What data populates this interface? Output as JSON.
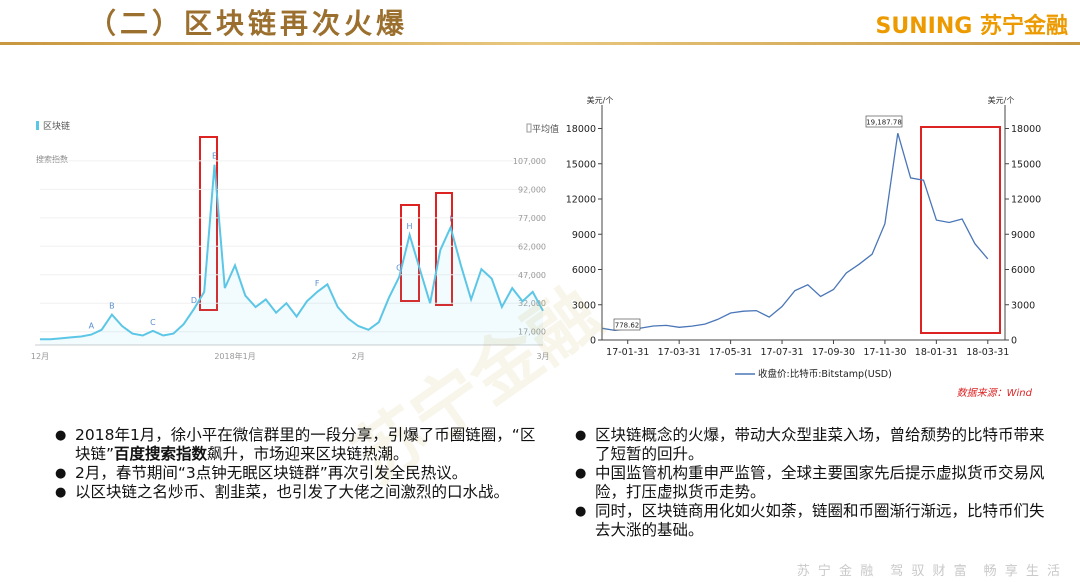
{
  "header": {
    "title": "（二）区块链再次火爆",
    "logo_latin": "SUNING",
    "logo_cn": "苏宁金融"
  },
  "chart_data": [
    {
      "type": "line",
      "legend": "区块链",
      "legend_right": "平均值",
      "y_label": "搜索指数",
      "color": "#5cc6e6",
      "categories": [
        "12月",
        null,
        null,
        null,
        null,
        null,
        null,
        null,
        null,
        null,
        null,
        null,
        null,
        null,
        null,
        null,
        null,
        null,
        null,
        "2018年1月",
        null,
        null,
        null,
        null,
        null,
        null,
        null,
        null,
        null,
        null,
        null,
        "2月",
        null,
        null,
        null,
        null,
        null,
        null,
        null,
        null,
        null,
        null,
        null,
        null,
        null,
        null,
        null,
        null,
        null,
        "3月"
      ],
      "series": [
        {
          "name": "区块链",
          "color": "#5cc6e6",
          "values": [
            13000,
            13000,
            13500,
            14000,
            14500,
            15500,
            18000,
            26000,
            20000,
            16000,
            15000,
            17500,
            15000,
            16000,
            21000,
            29000,
            38000,
            105000,
            40000,
            52000,
            36000,
            30000,
            34000,
            27000,
            32000,
            25000,
            33000,
            38000,
            42000,
            30000,
            24000,
            20000,
            18000,
            22000,
            35000,
            46000,
            68000,
            50000,
            32000,
            60000,
            72000,
            52000,
            34000,
            50000,
            45000,
            30000,
            40000,
            33000,
            38000,
            28000
          ]
        }
      ],
      "annotations": [
        "A",
        "B",
        "C",
        "D",
        "E",
        "F",
        "G",
        "H",
        "I"
      ],
      "ylim": [
        10000,
        118000
      ],
      "yticks": [
        {
          "value": 17000,
          "label": "17,000"
        },
        {
          "value": 32000,
          "label": "32,000"
        },
        {
          "value": 47000,
          "label": "47,000"
        },
        {
          "value": 62000,
          "label": "62,000"
        },
        {
          "value": 77000,
          "label": "77,000"
        },
        {
          "value": 92000,
          "label": "92,000"
        },
        {
          "value": 107000,
          "label": "107,000"
        }
      ]
    },
    {
      "type": "line",
      "y_label": "美元/个",
      "y2_label": "美元/个",
      "color": "#4a76b8",
      "categories": [
        null,
        null,
        "17-01-31",
        null,
        null,
        null,
        "17-03-31",
        null,
        null,
        null,
        "17-05-31",
        null,
        null,
        null,
        "17-07-31",
        null,
        null,
        null,
        "17-09-30",
        null,
        null,
        null,
        "17-11-30",
        null,
        null,
        null,
        "18-01-31",
        null,
        null,
        null,
        "18-03-31"
      ],
      "series": [
        {
          "name": "收盘价:比特币:Bitstamp(USD)",
          "color": "#4a76b8",
          "values": [
            1000,
            820,
            970,
            1010,
            1190,
            1240,
            1080,
            1180,
            1350,
            1750,
            2300,
            2450,
            2500,
            1950,
            2850,
            4200,
            4700,
            3700,
            4300,
            5700,
            6450,
            7300,
            9900,
            17600,
            13800,
            13600,
            10200,
            10000,
            10300,
            8200,
            6900
          ]
        }
      ],
      "annotations": [
        "778.62",
        "19,187.78"
      ],
      "ylim": [
        0,
        20000
      ],
      "yticks": [
        0,
        3000,
        6000,
        9000,
        12000,
        15000,
        18000
      ],
      "y2lim": [
        0,
        20000
      ],
      "y2ticks": [
        0,
        3000,
        6000,
        9000,
        12000,
        15000,
        18000
      ],
      "source": "数据来源：Wind"
    }
  ],
  "watermark": "苏宁金融",
  "left_bullets": [
    [
      "2018年1月，徐小平在微信群里的一段分享，引爆了币圈链圈，“区块链”",
      "百度搜索指数",
      "飙升，市场迎来区块链热潮。"
    ],
    [
      "2月，春节期间“3点钟无眠区块链群”再次引发全民热议。"
    ],
    [
      "以区块链之名炒币、割韭菜，也引发了大佬之间激烈的口水战。"
    ]
  ],
  "right_bullets": [
    [
      "区块链概念的火爆，带动大众型韭菜入场，曾给颓势的比特币带来了短暂的回升。"
    ],
    [
      "中国监管机构重申严监管，全球主要国家先后提示虚拟货币交易风险，打压虚拟货币走势。"
    ],
    [
      "同时，区块链商用化如火如荼，链圈和币圈渐行渐远，比特币们失去大涨的基础。"
    ]
  ],
  "footer": "苏 宁 金 融　驾 驭 财 富　畅 享 生 活"
}
